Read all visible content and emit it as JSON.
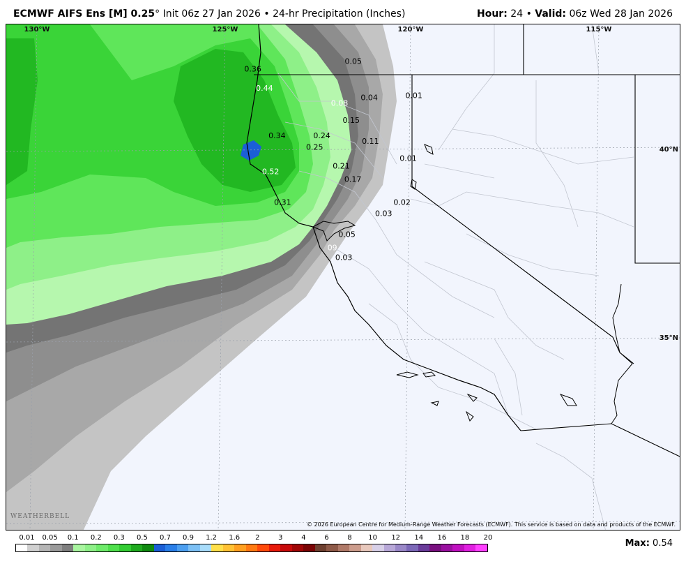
{
  "header": {
    "model": "ECMWF AIFS Ens [M] 0.25",
    "degree": "°",
    "init_text": "Init 06z 27 Jan 2026",
    "bullet": "•",
    "product": "24-hr Precipitation (Inches)",
    "hour_label": "Hour",
    "hour_value": "24",
    "valid_label": "Valid",
    "valid_value": "06z Wed 28 Jan 2026"
  },
  "map": {
    "lon_labels": [
      "130°W",
      "125°W",
      "120°W",
      "115°W"
    ],
    "lat_labels": [
      "40°N",
      "35°N"
    ],
    "values": [
      {
        "text": "0.36",
        "lon": -124.2,
        "lat": 42.1,
        "white": false
      },
      {
        "text": "0.44",
        "lon": -123.9,
        "lat": 41.6,
        "white": true
      },
      {
        "text": "0.05",
        "lon": -121.5,
        "lat": 42.3,
        "white": false
      },
      {
        "text": "0.04",
        "lon": -121.1,
        "lat": 41.35,
        "white": false
      },
      {
        "text": "0.08",
        "lon": -121.9,
        "lat": 41.2,
        "white": true
      },
      {
        "text": "0.01",
        "lon": -119.9,
        "lat": 41.4,
        "white": false
      },
      {
        "text": "0.15",
        "lon": -121.6,
        "lat": 40.75,
        "white": false
      },
      {
        "text": "0.34",
        "lon": -123.6,
        "lat": 40.35,
        "white": false
      },
      {
        "text": "0.24",
        "lon": -122.4,
        "lat": 40.35,
        "white": false
      },
      {
        "text": "0.25",
        "lon": -122.6,
        "lat": 40.05,
        "white": false
      },
      {
        "text": "0.11",
        "lon": -121.1,
        "lat": 40.2,
        "white": false
      },
      {
        "text": "0.01",
        "lon": -120.1,
        "lat": 39.75,
        "white": false
      },
      {
        "text": "0.52",
        "lon": -123.8,
        "lat": 39.4,
        "white": true
      },
      {
        "text": "0.21",
        "lon": -121.9,
        "lat": 39.55,
        "white": false
      },
      {
        "text": "0.17",
        "lon": -121.6,
        "lat": 39.2,
        "white": false
      },
      {
        "text": "0.31",
        "lon": -123.5,
        "lat": 38.6,
        "white": false
      },
      {
        "text": "0.02",
        "lon": -120.3,
        "lat": 38.6,
        "white": false
      },
      {
        "text": "0.03",
        "lon": -120.8,
        "lat": 38.3,
        "white": false
      },
      {
        "text": "0.05",
        "lon": -121.8,
        "lat": 37.75,
        "white": false
      },
      {
        "text": "09",
        "lon": -122.2,
        "lat": 37.4,
        "white": true
      },
      {
        "text": "0.03",
        "lon": -121.9,
        "lat": 37.15,
        "white": false
      }
    ],
    "copyright": "© 2026 European Centre for Medium-Range Weather Forecasts (ECMWF). This service is based on data and products of the ECMWF.",
    "logo": "WEATHERBELL"
  },
  "legend": {
    "labels": [
      "0.01",
      "0.05",
      "0.1",
      "0.2",
      "0.3",
      "0.5",
      "0.7",
      "0.9",
      "1.2",
      "1.6",
      "2",
      "3",
      "4",
      "6",
      "8",
      "10",
      "12",
      "14",
      "16",
      "18",
      "20"
    ],
    "colors": [
      "#ffffff",
      "#d0d0d0",
      "#b5b5b5",
      "#9a9a9a",
      "#7f7f7f",
      "#a9f5a0",
      "#8ef088",
      "#6eeb6a",
      "#4fe04c",
      "#33cc33",
      "#1faa1f",
      "#108a10",
      "#1b5fd6",
      "#2a7fe8",
      "#4c9ff0",
      "#7cc0f5",
      "#a8dcfa",
      "#ffe04a",
      "#ffc234",
      "#ffa020",
      "#ff7a12",
      "#ff4a0a",
      "#e81a0a",
      "#c80a0a",
      "#a00606",
      "#7a0404",
      "#6e4030",
      "#8e5a48",
      "#b07a68",
      "#cc9c8c",
      "#e8c8bc",
      "#d8d0e8",
      "#b8a8d8",
      "#9a88c8",
      "#7c68b8",
      "#6a3c9a",
      "#7a1080",
      "#9a10a0",
      "#c010c0",
      "#e020e0",
      "#ff40ff"
    ]
  },
  "max": {
    "label": "Max",
    "value": "0.54"
  }
}
